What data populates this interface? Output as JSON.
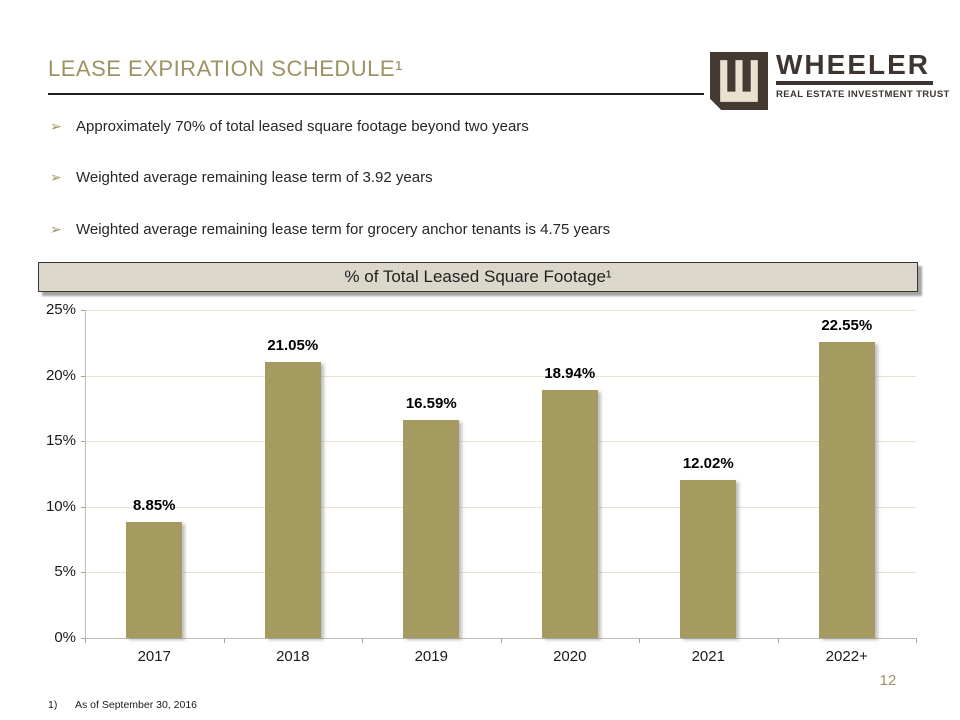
{
  "slide": {
    "title": "LEASE EXPIRATION SCHEDULE¹",
    "page_number": "12",
    "footnote_marker": "1)",
    "footnote_text": "As of September 30, 2016"
  },
  "logo": {
    "brand": "WHEELER",
    "tagline": "REAL ESTATE INVESTMENT TRUST",
    "mark_dark_color": "#453A31",
    "mark_cream_color": "#E9E2D0"
  },
  "bullets": [
    {
      "marker": "➢",
      "text": "Approximately 70% of total leased square footage beyond two years"
    },
    {
      "marker": "➢",
      "text": "Weighted average remaining lease term of 3.92 years"
    },
    {
      "marker": "➢",
      "text": "Weighted average remaining lease term for grocery anchor tenants is 4.75 years"
    }
  ],
  "chart_data": {
    "type": "bar",
    "title": "% of Total Leased Square Footage¹",
    "categories": [
      "2017",
      "2018",
      "2019",
      "2020",
      "2021",
      "2022+"
    ],
    "values": [
      8.85,
      21.05,
      16.59,
      18.94,
      12.02,
      22.55
    ],
    "data_labels": [
      "8.85%",
      "21.05%",
      "16.59%",
      "18.94%",
      "12.02%",
      "22.55%"
    ],
    "y_ticks": [
      "0%",
      "5%",
      "10%",
      "15%",
      "20%",
      "25%"
    ],
    "y_tick_values": [
      0,
      5,
      10,
      15,
      20,
      25
    ],
    "ylim": [
      0,
      25
    ],
    "xlabel": "",
    "ylabel": "",
    "grid": true,
    "legend": false,
    "bar_color": "#A59B60",
    "gridline_color": "#E6E2D4"
  },
  "colors": {
    "accent_gold": "#9C9264",
    "title_underline": "#1c1c1c",
    "chart_title_bar_bg": "#DBD8CB",
    "logo_brown": "#3F3530"
  }
}
